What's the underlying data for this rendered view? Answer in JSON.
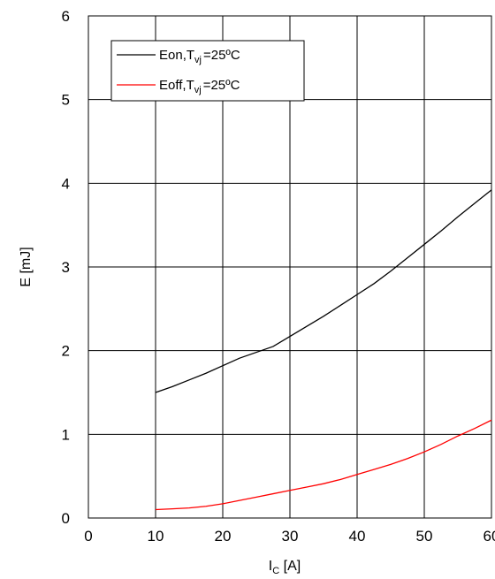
{
  "chart_data": {
    "type": "line",
    "xlabel": {
      "main": "I",
      "sub": "C",
      "unit": " [A]"
    },
    "ylabel": "E [mJ]",
    "xlim": [
      0,
      60
    ],
    "ylim": [
      0,
      6
    ],
    "xticks": [
      "0",
      "10",
      "20",
      "30",
      "40",
      "50",
      "60"
    ],
    "yticks": [
      "0",
      "1",
      "2",
      "3",
      "4",
      "5",
      "6"
    ],
    "grid": true,
    "legend_position": "top-left",
    "series": [
      {
        "name": "Eon,Tvj=25ºC",
        "legend": {
          "pre": "Eon,T",
          "sub": "vj",
          "post": "=25ºC"
        },
        "color": "#000000",
        "x": [
          10,
          12.5,
          15,
          17.5,
          20,
          22.5,
          25,
          27.5,
          30,
          32.5,
          35,
          37.5,
          40,
          42.5,
          45,
          47.5,
          50,
          52.5,
          55,
          57.5,
          60
        ],
        "y": [
          1.5,
          1.57,
          1.65,
          1.73,
          1.82,
          1.91,
          1.98,
          2.05,
          2.17,
          2.29,
          2.41,
          2.54,
          2.67,
          2.8,
          2.95,
          3.11,
          3.27,
          3.43,
          3.6,
          3.76,
          3.92
        ]
      },
      {
        "name": "Eoff,Tvj=25ºC",
        "legend": {
          "pre": "Eoff,T",
          "sub": "vj",
          "post": "=25ºC"
        },
        "color": "#ff0000",
        "x": [
          10,
          12.5,
          15,
          17.5,
          20,
          22.5,
          25,
          27.5,
          30,
          32.5,
          35,
          37.5,
          40,
          42.5,
          45,
          47.5,
          50,
          52.5,
          55,
          57.5,
          60
        ],
        "y": [
          0.1,
          0.11,
          0.12,
          0.14,
          0.17,
          0.21,
          0.25,
          0.29,
          0.33,
          0.37,
          0.41,
          0.46,
          0.52,
          0.58,
          0.64,
          0.71,
          0.79,
          0.88,
          0.98,
          1.07,
          1.17
        ]
      }
    ]
  }
}
